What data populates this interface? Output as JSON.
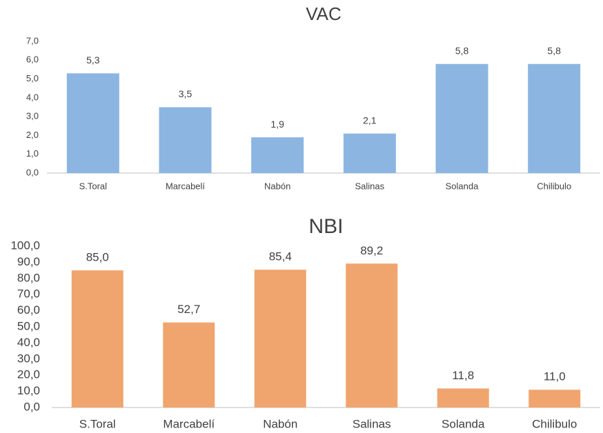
{
  "chart_data": [
    {
      "type": "bar",
      "title": "VAC",
      "categories": [
        "S.Toral",
        "Marcabelí",
        "Nabón",
        "Salinas",
        "Solanda",
        "Chilibulo"
      ],
      "values": [
        5.3,
        3.5,
        1.9,
        2.1,
        5.8,
        5.8
      ],
      "value_labels": [
        "5,3",
        "3,5",
        "1,9",
        "2,1",
        "5,8",
        "5,8"
      ],
      "color": "#8cb6e1",
      "ylim": [
        0,
        7
      ],
      "yticks": [
        {
          "value": 0,
          "label": "0,0"
        },
        {
          "value": 1,
          "label": "1,0"
        },
        {
          "value": 2,
          "label": "2,0"
        },
        {
          "value": 3,
          "label": "3,0"
        },
        {
          "value": 4,
          "label": "4,0"
        },
        {
          "value": 5,
          "label": "5,0"
        },
        {
          "value": 6,
          "label": "6,0"
        },
        {
          "value": 7,
          "label": "7,0"
        }
      ],
      "grid": false
    },
    {
      "type": "bar",
      "title": "NBI",
      "categories": [
        "S.Toral",
        "Marcabelí",
        "Nabón",
        "Salinas",
        "Solanda",
        "Chilibulo"
      ],
      "values": [
        85.0,
        52.7,
        85.4,
        89.2,
        11.8,
        11.0
      ],
      "value_labels": [
        "85,0",
        "52,7",
        "85,4",
        "89,2",
        "11,8",
        "11,0"
      ],
      "color": "#f0a56e",
      "ylim": [
        0,
        100
      ],
      "yticks": [
        {
          "value": 0,
          "label": "0,0"
        },
        {
          "value": 10,
          "label": "10,0"
        },
        {
          "value": 20,
          "label": "20,0"
        },
        {
          "value": 30,
          "label": "30,0"
        },
        {
          "value": 40,
          "label": "40,0"
        },
        {
          "value": 50,
          "label": "50,0"
        },
        {
          "value": 60,
          "label": "60,0"
        },
        {
          "value": 70,
          "label": "70,0"
        },
        {
          "value": 80,
          "label": "80,0"
        },
        {
          "value": 90,
          "label": "90,0"
        },
        {
          "value": 100,
          "label": "100,0"
        }
      ],
      "grid": false
    }
  ]
}
